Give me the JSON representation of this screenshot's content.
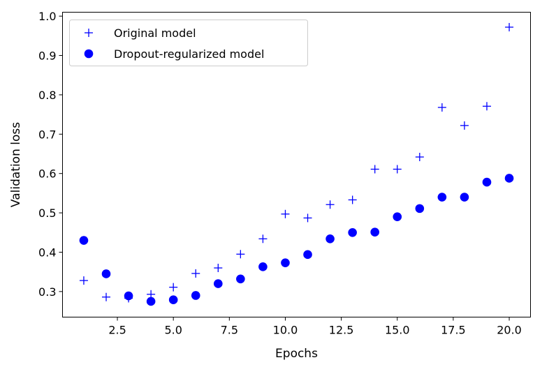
{
  "chart_data": {
    "type": "scatter",
    "title": "",
    "xlabel": "Epochs",
    "ylabel": "Validation loss",
    "xlim": [
      0.05,
      20.95
    ],
    "ylim": [
      0.235,
      1.01
    ],
    "x_ticks": [
      2.5,
      5.0,
      7.5,
      10.0,
      12.5,
      15.0,
      17.5,
      20.0
    ],
    "x_tick_labels": [
      "2.5",
      "5.0",
      "7.5",
      "10.0",
      "12.5",
      "15.0",
      "17.5",
      "20.0"
    ],
    "y_ticks": [
      0.3,
      0.4,
      0.5,
      0.6,
      0.7,
      0.8,
      0.9,
      1.0
    ],
    "y_tick_labels": [
      "0.3",
      "0.4",
      "0.5",
      "0.6",
      "0.7",
      "0.8",
      "0.9",
      "1.0"
    ],
    "grid": false,
    "legend_position": "top-left",
    "x": [
      1,
      2,
      3,
      4,
      5,
      6,
      7,
      8,
      9,
      10,
      11,
      12,
      13,
      14,
      15,
      16,
      17,
      18,
      19,
      20
    ],
    "series": [
      {
        "name": "Original model",
        "marker": "plus",
        "color": "#0000ff",
        "values": [
          0.328,
          0.286,
          0.283,
          0.293,
          0.311,
          0.346,
          0.36,
          0.395,
          0.434,
          0.497,
          0.487,
          0.521,
          0.533,
          0.611,
          0.611,
          0.642,
          0.768,
          0.722,
          0.771,
          0.972
        ]
      },
      {
        "name": "Dropout-regularized model",
        "marker": "circle",
        "color": "#0000ff",
        "values": [
          0.43,
          0.345,
          0.289,
          0.275,
          0.279,
          0.29,
          0.32,
          0.332,
          0.363,
          0.373,
          0.394,
          0.434,
          0.45,
          0.451,
          0.49,
          0.511,
          0.54,
          0.54,
          0.578,
          0.588
        ]
      }
    ]
  }
}
